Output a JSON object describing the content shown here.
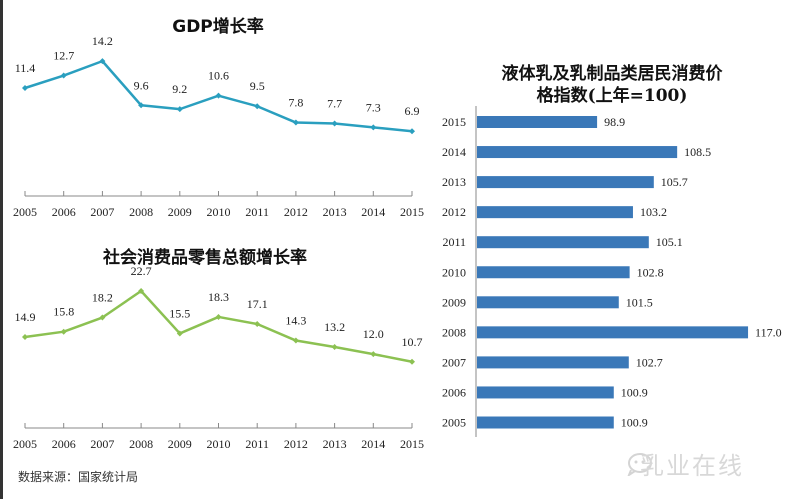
{
  "source_note": "数据来源：国家统计局",
  "watermark": "乳业在线",
  "colors": {
    "gdp_line": "#2a9fbf",
    "retail_line": "#8cc152",
    "bar_fill": "#3a78b8",
    "axis": "#888888",
    "text": "#222222"
  },
  "chart_data": [
    {
      "type": "line",
      "title": "GDP增长率",
      "xlabel": "",
      "ylabel": "",
      "grid": false,
      "x": [
        "2005",
        "2006",
        "2007",
        "2008",
        "2009",
        "2010",
        "2011",
        "2012",
        "2013",
        "2014",
        "2015"
      ],
      "values": [
        11.4,
        12.7,
        14.2,
        9.6,
        9.2,
        10.6,
        9.5,
        7.8,
        7.7,
        7.3,
        6.9
      ],
      "labels": [
        "11.4",
        "12.7",
        "14.2",
        "9.6",
        "9.2",
        "10.6",
        "9.5",
        "7.8",
        "7.7",
        "7.3",
        "6.9"
      ]
    },
    {
      "type": "line",
      "title": "社会消费品零售总额增长率",
      "xlabel": "",
      "ylabel": "",
      "grid": false,
      "x": [
        "2005",
        "2006",
        "2007",
        "2008",
        "2009",
        "2010",
        "2011",
        "2012",
        "2013",
        "2014",
        "2015"
      ],
      "values": [
        14.9,
        15.8,
        18.2,
        22.7,
        15.5,
        18.3,
        17.1,
        14.3,
        13.2,
        12.0,
        10.7
      ],
      "labels": [
        "14.9",
        "15.8",
        "18.2",
        "22.7",
        "15.5",
        "18.3",
        "17.1",
        "14.3",
        "13.2",
        "12.0",
        "10.7"
      ]
    },
    {
      "type": "bar",
      "orientation": "horizontal",
      "title": "液体乳及乳制品类居民消费价格指数(上年=100)",
      "title_lines": [
        "液体乳及乳制品类居民消费价",
        "格指数(上年=100)"
      ],
      "xlabel": "",
      "ylabel": "",
      "grid": false,
      "categories": [
        "2015",
        "2014",
        "2013",
        "2012",
        "2011",
        "2010",
        "2009",
        "2008",
        "2007",
        "2006",
        "2005"
      ],
      "values": [
        98.9,
        108.5,
        105.7,
        103.2,
        105.1,
        102.8,
        101.5,
        117.0,
        102.7,
        100.9,
        100.9
      ],
      "labels": [
        "98.9",
        "108.5",
        "105.7",
        "103.2",
        "105.1",
        "102.8",
        "101.5",
        "117.0",
        "102.7",
        "100.9",
        "100.9"
      ]
    }
  ]
}
